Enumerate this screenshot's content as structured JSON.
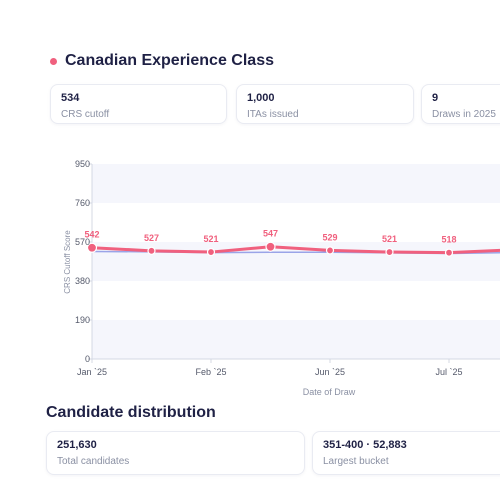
{
  "section": {
    "title": "Canadian Experience Class"
  },
  "stats": [
    {
      "value": "534",
      "label": "CRS cutoff"
    },
    {
      "value": "1,000",
      "label": "ITAs issued"
    },
    {
      "value": "9",
      "label": "Draws in 2025"
    }
  ],
  "chart_data": {
    "type": "line",
    "xlabel": "Date of Draw",
    "ylabel": "CRS Cutoff Score",
    "ylim": [
      0,
      950
    ],
    "yticks": [
      0,
      190,
      380,
      570,
      760,
      950
    ],
    "xticks": [
      {
        "label": "Jan `25",
        "index": 0
      },
      {
        "label": "Feb `25",
        "index": 2
      },
      {
        "label": "Jun `25",
        "index": 4
      },
      {
        "label": "Jul `25",
        "index": 6
      }
    ],
    "series": [
      {
        "values": [
          542,
          527,
          521,
          547,
          529,
          521,
          518,
          531
        ],
        "color": "#f0607e",
        "labeled": true
      },
      {
        "values": [
          524,
          522,
          518,
          520,
          520,
          517,
          514,
          518
        ],
        "color": "#9aa4e8",
        "labeled": false
      }
    ],
    "grid": true,
    "colors": {
      "band": "#f5f6fc",
      "axis": "#d4d8e3",
      "text": "#555a6b",
      "label": "#8a90a3",
      "primary": "#f0607e",
      "secondary": "#9aa4e8"
    }
  },
  "distribution": {
    "title": "Candidate distribution",
    "cards": [
      {
        "value": "251,630",
        "label": "Total candidates"
      },
      {
        "value": "351-400 · 52,883",
        "label": "Largest bucket"
      }
    ]
  }
}
